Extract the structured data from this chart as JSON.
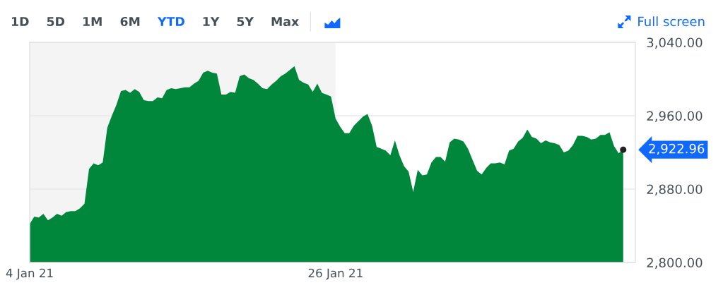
{
  "chart_data": {
    "type": "area",
    "categories": [
      "4 Jan 21",
      null,
      null,
      null,
      null,
      null,
      null,
      null,
      null,
      null,
      null,
      null,
      null,
      null,
      null,
      null,
      null,
      null,
      null,
      null,
      null,
      null,
      null,
      null,
      null,
      null,
      null,
      null,
      null,
      null,
      null,
      null,
      null,
      null,
      null,
      null,
      null,
      null,
      null,
      null,
      null,
      null,
      null,
      null,
      null,
      null,
      null,
      null,
      null,
      null,
      null,
      null,
      null,
      null,
      null,
      null,
      null,
      null,
      null,
      null,
      null,
      null,
      null,
      null,
      null,
      null,
      null,
      "26 Jan 21",
      null,
      null,
      null,
      null,
      null,
      null,
      null,
      null,
      null,
      null,
      null,
      null,
      null,
      null,
      null,
      null,
      null,
      null,
      null,
      null,
      null,
      null,
      null,
      null,
      null,
      null,
      null,
      null,
      null,
      null,
      null,
      null,
      null,
      null,
      null,
      null,
      null,
      null,
      null,
      null,
      null,
      null,
      null,
      null,
      null,
      null,
      null,
      null,
      null,
      null,
      null,
      null,
      null,
      null,
      null,
      null,
      null,
      null,
      null,
      null,
      null,
      null,
      null
    ],
    "series": [
      {
        "color": "#00873c",
        "values": [
          2842,
          2850,
          2849,
          2853,
          2846,
          2849,
          2853,
          2851,
          2855,
          2856,
          2856,
          2859,
          2864,
          2902,
          2908,
          2906,
          2909,
          2947,
          2960,
          2972,
          2987,
          2988,
          2985,
          2989,
          2986,
          2977,
          2976,
          2976,
          2980,
          2979,
          2988,
          2990,
          2989,
          2990,
          2991,
          2991,
          2995,
          2998,
          3007,
          3009,
          3007,
          3006,
          2983,
          2983,
          2986,
          2985,
          3003,
          3005,
          3001,
          2999,
          2995,
          2990,
          2989,
          2994,
          2998,
          3003,
          3006,
          3010,
          3014,
          2999,
          2996,
          2994,
          2986,
          2995,
          2985,
          2983,
          2981,
          2957,
          2948,
          2941,
          2941,
          2949,
          2954,
          2959,
          2962,
          2949,
          2926,
          2924,
          2922,
          2917,
          2933,
          2917,
          2905,
          2899,
          2877,
          2901,
          2895,
          2896,
          2909,
          2915,
          2915,
          2910,
          2931,
          2935,
          2934,
          2932,
          2924,
          2912,
          2900,
          2896,
          2903,
          2908,
          2908,
          2909,
          2907,
          2922,
          2924,
          2932,
          2936,
          2945,
          2937,
          2935,
          2930,
          2933,
          2931,
          2930,
          2928,
          2920,
          2922,
          2928,
          2938,
          2938,
          2937,
          2934,
          2935,
          2939,
          2939,
          2942,
          2927,
          2919,
          2922.96
        ]
      },
      {
        "type": "scatter",
        "color": "#222222",
        "marker": "circle",
        "values": [
          null,
          null,
          null,
          null,
          null,
          null,
          null,
          null,
          null,
          null,
          null,
          null,
          null,
          null,
          null,
          null,
          null,
          null,
          null,
          null,
          null,
          null,
          null,
          null,
          null,
          null,
          null,
          null,
          null,
          null,
          null,
          null,
          null,
          null,
          null,
          null,
          null,
          null,
          null,
          null,
          null,
          null,
          null,
          null,
          null,
          null,
          null,
          null,
          null,
          null,
          null,
          null,
          null,
          null,
          null,
          null,
          null,
          null,
          null,
          null,
          null,
          null,
          null,
          null,
          null,
          null,
          null,
          null,
          null,
          null,
          null,
          null,
          null,
          null,
          null,
          null,
          null,
          null,
          null,
          null,
          null,
          null,
          null,
          null,
          null,
          null,
          null,
          null,
          null,
          null,
          null,
          null,
          null,
          null,
          null,
          null,
          null,
          null,
          null,
          null,
          null,
          null,
          null,
          null,
          null,
          null,
          null,
          null,
          null,
          null,
          null,
          null,
          null,
          null,
          null,
          null,
          null,
          null,
          null,
          null,
          null,
          null,
          null,
          null,
          null,
          null,
          null,
          null,
          null,
          null,
          2922.96
        ]
      }
    ],
    "ylim": [
      2800,
      3040
    ],
    "yticks": [
      {
        "value": 2800,
        "label": "2,800.00"
      },
      {
        "value": 2880,
        "label": "2,880.00"
      },
      {
        "value": 2960,
        "label": "2,960.00"
      },
      {
        "value": 3040,
        "label": "3,040.00"
      }
    ],
    "grid": "y",
    "bands": [
      {
        "axis": "x",
        "from": "4 Jan 21",
        "to": "26 Jan 21",
        "color": "#f4f4f4"
      }
    ],
    "annotations": [
      "1D",
      "5D",
      "1M",
      "6M",
      "YTD",
      "1Y",
      "5Y",
      "Max",
      "Full screen",
      "2,922.96"
    ]
  }
}
